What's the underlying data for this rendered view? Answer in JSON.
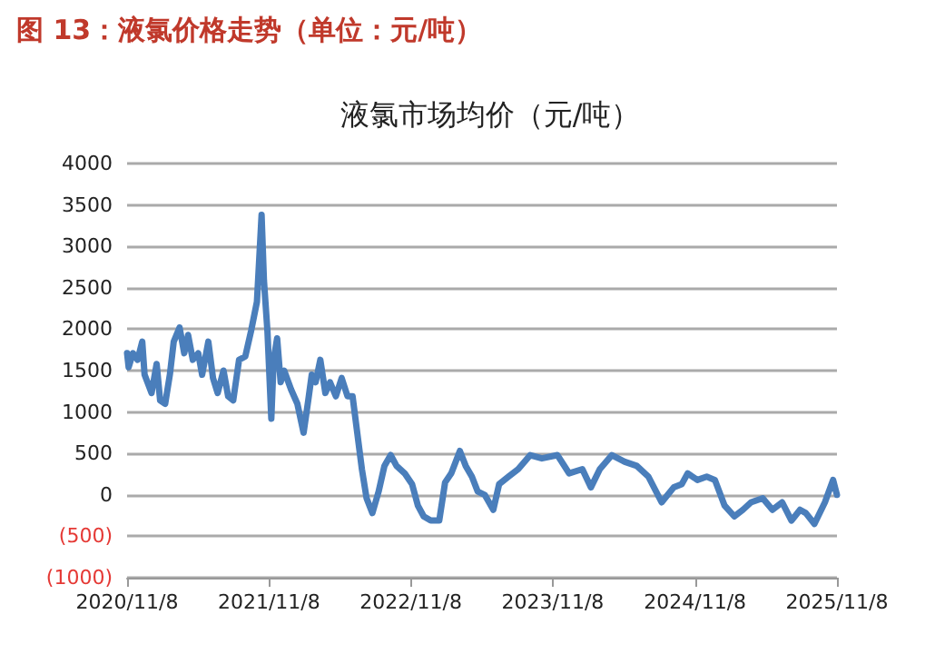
{
  "chart_data": {
    "type": "line",
    "title": "图 13：液氯价格走势（单位：元/吨）",
    "subtitle": "液氯市场均价（元/吨）",
    "x": [
      "2020-11-08",
      "2020-11-12",
      "2020-11-23",
      "2020-12-05",
      "2020-12-17",
      "2020-12-23",
      "2021-01-10",
      "2021-01-23",
      "2021-02-01",
      "2021-02-14",
      "2021-02-26",
      "2021-03-08",
      "2021-03-23",
      "2021-04-04",
      "2021-04-14",
      "2021-04-26",
      "2021-05-10",
      "2021-05-20",
      "2021-06-05",
      "2021-06-17",
      "2021-06-29",
      "2021-07-14",
      "2021-07-26",
      "2021-08-08",
      "2021-08-23",
      "2021-09-08",
      "2021-09-23",
      "2021-10-08",
      "2021-10-20",
      "2021-10-26",
      "2021-11-04",
      "2021-11-14",
      "2021-11-20",
      "2021-11-29",
      "2021-12-08",
      "2021-12-17",
      "2022-01-04",
      "2022-01-20",
      "2022-02-05",
      "2022-02-17",
      "2022-02-26",
      "2022-03-08",
      "2022-03-20",
      "2022-04-02",
      "2022-04-14",
      "2022-04-29",
      "2022-05-14",
      "2022-05-29",
      "2022-06-11",
      "2022-06-23",
      "2022-07-05",
      "2022-07-17",
      "2022-08-01",
      "2022-08-17",
      "2022-09-01",
      "2022-09-17",
      "2022-10-02",
      "2022-10-23",
      "2022-11-11",
      "2022-11-26",
      "2022-12-11",
      "2022-12-29",
      "2023-01-20",
      "2023-02-04",
      "2023-02-20",
      "2023-03-14",
      "2023-03-29",
      "2023-04-14",
      "2023-04-29",
      "2023-05-17",
      "2023-06-08",
      "2023-06-23",
      "2023-07-17",
      "2023-08-11",
      "2023-09-11",
      "2023-10-11",
      "2023-11-20",
      "2023-12-20",
      "2024-01-23",
      "2024-02-14",
      "2024-03-08",
      "2024-04-08",
      "2024-05-11",
      "2024-06-11",
      "2024-07-11",
      "2024-08-14",
      "2024-09-14",
      "2024-10-05",
      "2024-10-20",
      "2024-11-14",
      "2024-12-08",
      "2024-12-29",
      "2025-01-23",
      "2025-02-17",
      "2025-03-11",
      "2025-04-01",
      "2025-05-01",
      "2025-05-26",
      "2025-06-20",
      "2025-07-14",
      "2025-08-05",
      "2025-08-20",
      "2025-09-11",
      "2025-10-08",
      "2025-10-29",
      "2025-11-08"
    ],
    "series": [
      {
        "color": "#4a7ebb",
        "values": [
          1710,
          1540,
          1710,
          1630,
          1850,
          1450,
          1230,
          1580,
          1140,
          1100,
          1450,
          1850,
          2020,
          1710,
          1930,
          1630,
          1710,
          1450,
          1850,
          1410,
          1230,
          1500,
          1190,
          1140,
          1630,
          1670,
          1980,
          2330,
          3380,
          2590,
          1980,
          920,
          1630,
          1890,
          1360,
          1500,
          1270,
          1100,
          750,
          1140,
          1450,
          1360,
          1630,
          1230,
          1360,
          1190,
          1410,
          1190,
          1190,
          750,
          310,
          -40,
          -220,
          40,
          350,
          480,
          350,
          260,
          130,
          -130,
          -260,
          -310,
          -310,
          150,
          260,
          530,
          350,
          220,
          40,
          0,
          -180,
          130,
          220,
          310,
          480,
          440,
          480,
          260,
          310,
          90,
          310,
          480,
          400,
          350,
          220,
          -90,
          90,
          130,
          260,
          180,
          220,
          180,
          -130,
          -260,
          -180,
          -90,
          -40,
          -180,
          -90,
          -310,
          -180,
          -220,
          -350,
          -90,
          180,
          0
        ]
      }
    ],
    "xlim": [
      "2020-11-08",
      "2025-11-08"
    ],
    "xticks": [
      {
        "value": "2020-11-08",
        "label": "2020/11/8"
      },
      {
        "value": "2021-11-08",
        "label": "2021/11/8"
      },
      {
        "value": "2022-11-08",
        "label": "2022/11/8"
      },
      {
        "value": "2023-11-08",
        "label": "2023/11/8"
      },
      {
        "value": "2024-11-08",
        "label": "2024/11/8"
      },
      {
        "value": "2025-11-08",
        "label": "2025/11/8"
      }
    ],
    "ylim": [
      -1000,
      4000
    ],
    "yticks": [
      {
        "value": -1000,
        "label": "(1000)"
      },
      {
        "value": -500,
        "label": "(500)"
      },
      0,
      500,
      1000,
      1500,
      2000,
      2500,
      3000,
      3500,
      4000
    ],
    "grid": "y",
    "marker": "none",
    "line_style": "solid"
  }
}
